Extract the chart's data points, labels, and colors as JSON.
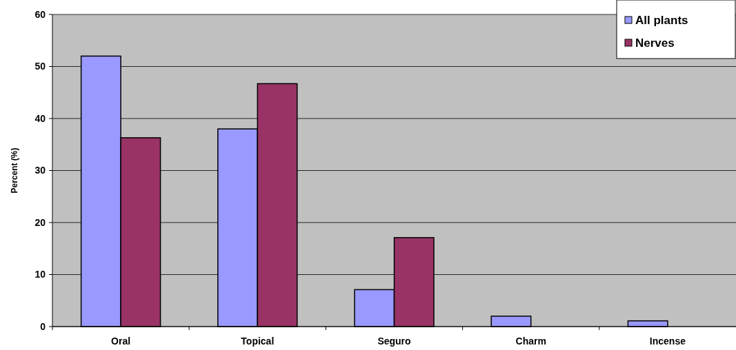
{
  "chart_data": {
    "type": "bar",
    "ylabel": "Percent (%)",
    "categories": [
      "Oral",
      "Topical",
      "Seguro",
      "Charm",
      "Incense"
    ],
    "series": [
      {
        "name": "All plants",
        "color": "#9999ff",
        "values": [
          52,
          38,
          7.1,
          2,
          1.1
        ]
      },
      {
        "name": "Nerves",
        "color": "#993366",
        "values": [
          36.3,
          46.7,
          17.1,
          0,
          0
        ]
      }
    ],
    "ylim": [
      0,
      60
    ],
    "yticks": [
      0,
      10,
      20,
      30,
      40,
      50,
      60
    ],
    "grid": "y",
    "legend": "top right"
  }
}
